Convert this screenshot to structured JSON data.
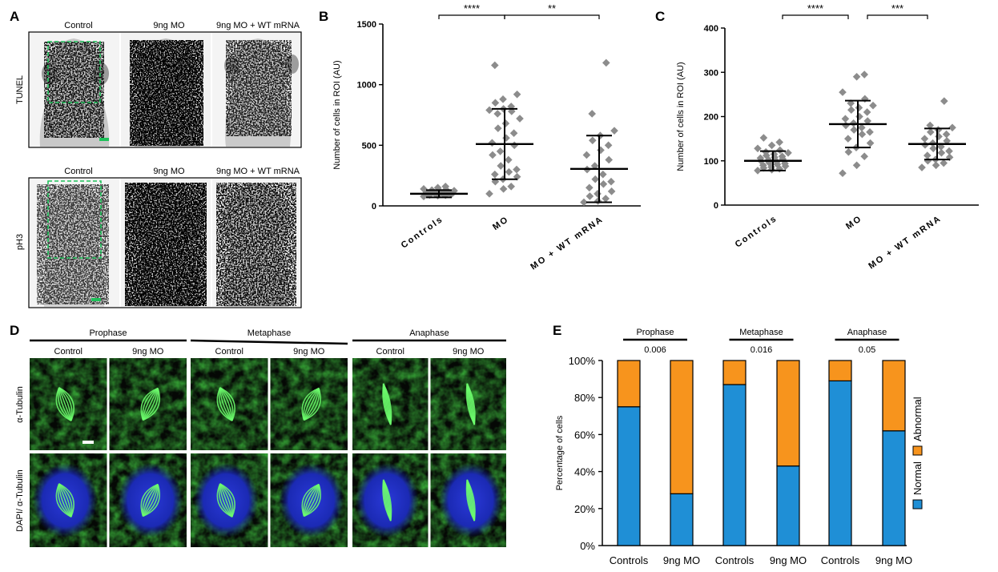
{
  "panel_letters": {
    "a": "A",
    "b": "B",
    "c": "C",
    "d": "D",
    "e": "E"
  },
  "panel_a": {
    "tunel": {
      "row_label": "TUNEL",
      "columns": [
        "Control",
        "9ng MO",
        "9ng MO + WT mRNA"
      ]
    },
    "ph3": {
      "row_label": "pH3",
      "columns": [
        "Control",
        "9ng MO",
        "9ng MO + WT mRNA"
      ]
    }
  },
  "panel_d": {
    "phases": [
      "Prophase",
      "Metaphase",
      "Anaphase"
    ],
    "conditions": [
      "Control",
      "9ng MO"
    ],
    "row_labels": [
      "α-Tubulin",
      "DAPI/ α-Tubulin"
    ]
  },
  "chart_data": [
    {
      "id": "B",
      "type": "scatter",
      "ylabel": "Number of cells in ROI (AU)",
      "ylim": [
        0,
        1500
      ],
      "yticks": [
        "0",
        "500",
        "1000",
        "1500"
      ],
      "categories": [
        "Controls",
        "MO",
        "MO + WT mRNA"
      ],
      "summary": [
        {
          "mean": 100,
          "low": 70,
          "high": 130
        },
        {
          "mean": 510,
          "low": 220,
          "high": 800
        },
        {
          "mean": 305,
          "low": 30,
          "high": 580
        }
      ],
      "points": [
        [
          78,
          85,
          88,
          90,
          92,
          95,
          96,
          98,
          100,
          100,
          102,
          104,
          105,
          108,
          110,
          112,
          115,
          118,
          120,
          125,
          130,
          135,
          140,
          150,
          160
        ],
        [
          100,
          140,
          160,
          200,
          220,
          240,
          260,
          280,
          300,
          330,
          380,
          420,
          450,
          500,
          520,
          560,
          600,
          640,
          680,
          720,
          760,
          780,
          790,
          800,
          820,
          850,
          880,
          920,
          1160
        ],
        [
          30,
          40,
          60,
          80,
          100,
          120,
          150,
          180,
          200,
          220,
          260,
          300,
          330,
          380,
          420,
          460,
          500,
          540,
          580,
          620,
          760,
          1180
        ]
      ],
      "comparisons": [
        {
          "from": 0,
          "to": 1,
          "label": "****"
        },
        {
          "from": 1,
          "to": 2,
          "label": "**"
        }
      ]
    },
    {
      "id": "C",
      "type": "scatter",
      "ylabel": "Number of cells in ROI (AU)",
      "ylim": [
        0,
        400
      ],
      "yticks": [
        "0",
        "100",
        "200",
        "300",
        "400"
      ],
      "categories": [
        "Controls",
        "MO",
        "MO + WT mRNA"
      ],
      "summary": [
        {
          "mean": 100,
          "low": 78,
          "high": 122
        },
        {
          "mean": 183,
          "low": 130,
          "high": 236
        },
        {
          "mean": 138,
          "low": 103,
          "high": 173
        }
      ],
      "points": [
        [
          78,
          80,
          82,
          84,
          86,
          88,
          90,
          92,
          94,
          96,
          98,
          100,
          102,
          104,
          106,
          108,
          110,
          112,
          115,
          118,
          120,
          124,
          128,
          135,
          142,
          152
        ],
        [
          72,
          90,
          110,
          120,
          130,
          140,
          150,
          160,
          165,
          170,
          175,
          180,
          185,
          190,
          195,
          200,
          210,
          215,
          220,
          225,
          230,
          240,
          255,
          290,
          295
        ],
        [
          85,
          90,
          95,
          100,
          103,
          108,
          112,
          118,
          122,
          128,
          132,
          136,
          140,
          145,
          150,
          155,
          160,
          165,
          170,
          175,
          180,
          235
        ]
      ],
      "comparisons": [
        {
          "from": 0,
          "to": 1,
          "label": "****"
        },
        {
          "from": 1,
          "to": 2,
          "label": "***"
        }
      ]
    },
    {
      "id": "E",
      "type": "bar",
      "stacked": true,
      "ylabel": "Percentage of cells",
      "ylim": [
        0,
        100
      ],
      "yticks": [
        "0%",
        "20%",
        "40%",
        "60%",
        "80%",
        "100%"
      ],
      "categories": [
        "Controls",
        "9ng MO",
        "Controls",
        "9ng MO",
        "Controls",
        "9ng MO"
      ],
      "groups": [
        {
          "label": "Prophase",
          "p": "0.006"
        },
        {
          "label": "Metaphase",
          "p": "0.016"
        },
        {
          "label": "Anaphase",
          "p": "0.05"
        }
      ],
      "series": [
        {
          "name": "Normal",
          "color": "#1f8fd6",
          "values": [
            75,
            28,
            87,
            43,
            89,
            62
          ]
        },
        {
          "name": "Abnormal",
          "color": "#f7941d",
          "values": [
            25,
            72,
            13,
            57,
            11,
            38
          ]
        }
      ]
    }
  ]
}
